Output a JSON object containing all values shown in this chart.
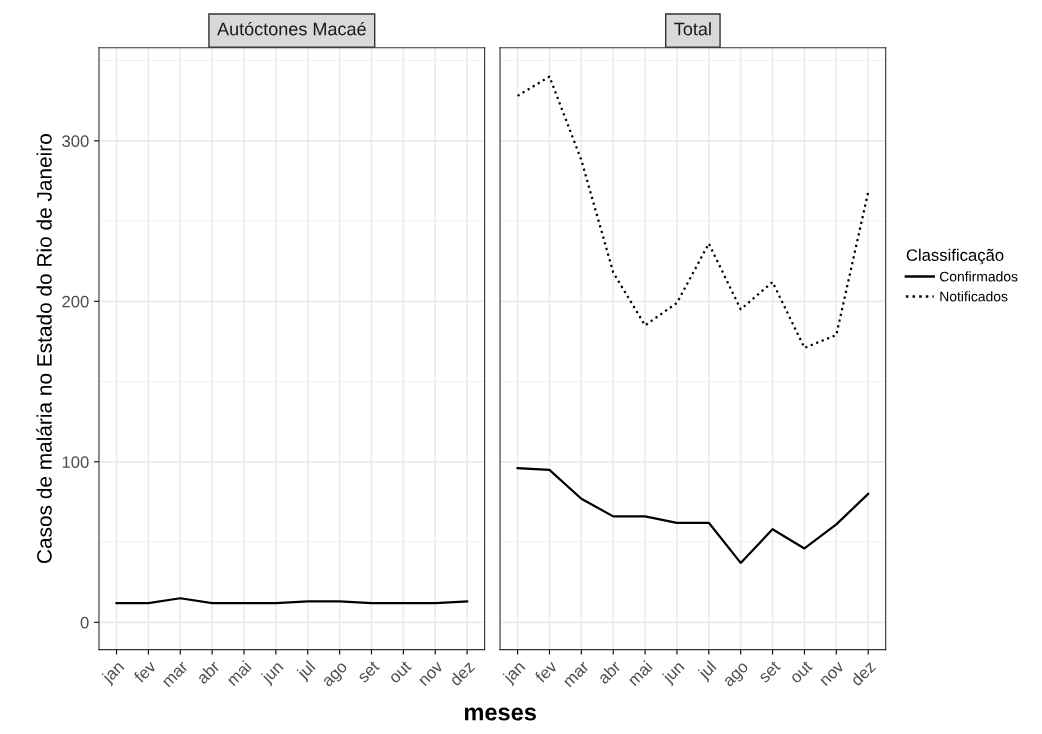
{
  "chart_data": [
    {
      "type": "line",
      "title": "Autóctones Macaé",
      "xlabel": "meses",
      "ylabel": "Casos de malária no Estado do Rio de Janeiro",
      "categories": [
        "jan",
        "fev",
        "mar",
        "abr",
        "mai",
        "jun",
        "jul",
        "ago",
        "set",
        "out",
        "nov",
        "dez"
      ],
      "series": [
        {
          "color": "#000000",
          "line_style": "solid",
          "values": [
            12,
            12,
            15,
            12,
            12,
            12,
            13,
            13,
            12,
            12,
            12,
            13
          ]
        }
      ],
      "ylim": [
        -17,
        358
      ],
      "yticks": [
        0,
        100,
        200,
        300
      ],
      "grid": true
    },
    {
      "type": "line",
      "title": "Total",
      "legend_title": "Classificação",
      "legend": "right",
      "tick_labels": "x",
      "categories": [
        "jan",
        "fev",
        "mar",
        "abr",
        "mai",
        "jun",
        "jul",
        "ago",
        "set",
        "out",
        "nov",
        "dez"
      ],
      "series": [
        {
          "name": "Confirmados",
          "color": "#000000",
          "line_style": "solid",
          "values": [
            96,
            95,
            77,
            66,
            66,
            62,
            62,
            37,
            58,
            46,
            61,
            80
          ]
        },
        {
          "name": "Notificados",
          "color": "#000000",
          "line_style": "dotted",
          "values": [
            328,
            340,
            288,
            218,
            185,
            199,
            236,
            195,
            212,
            171,
            179,
            268
          ]
        }
      ],
      "ylim": [
        -17,
        358
      ],
      "yticks": [
        0,
        100,
        200,
        300
      ],
      "grid": true
    }
  ]
}
